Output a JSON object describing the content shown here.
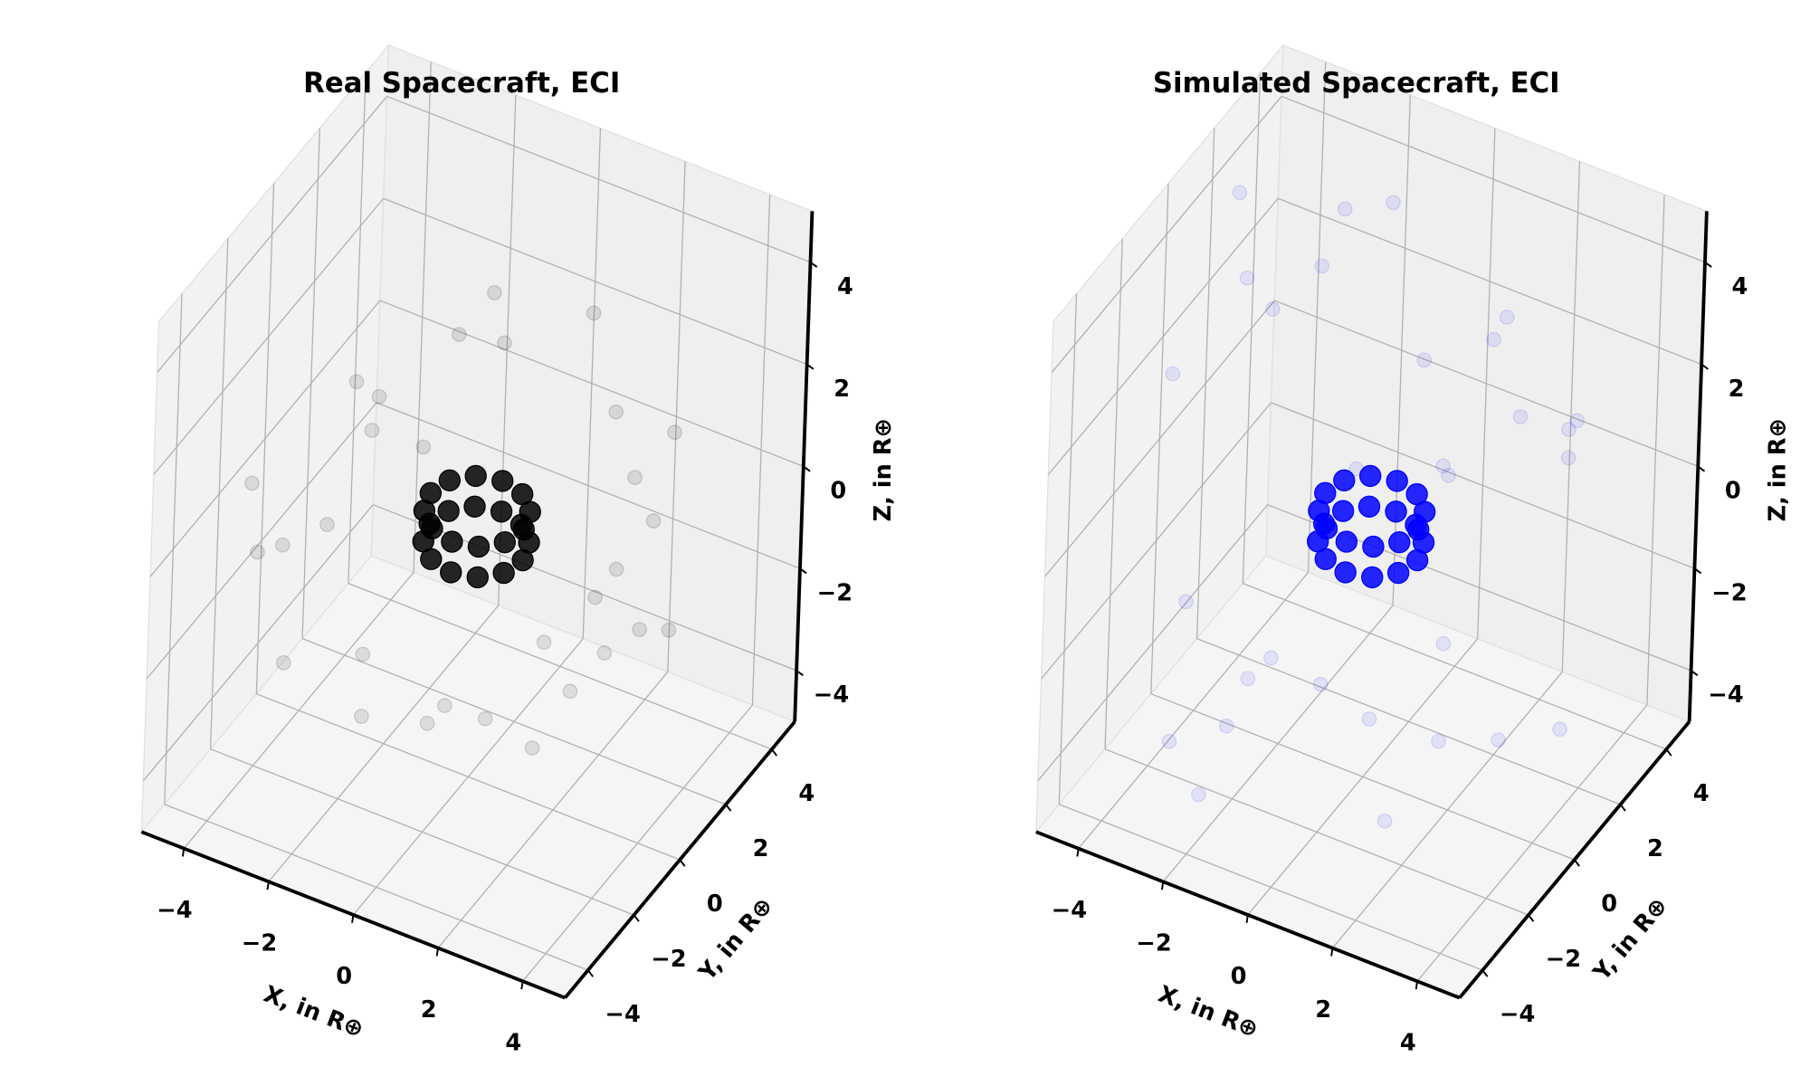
{
  "chart_data": [
    {
      "type": "scatter3d",
      "title": "Real Spacecraft, ECI",
      "xlabel": "X, in R⊕",
      "ylabel": "Y, in R⊕",
      "zlabel": "Z, in R⊕",
      "xlim": [
        -5,
        5
      ],
      "ylim": [
        -5,
        5
      ],
      "zlim": [
        -5,
        5
      ],
      "xticks": [
        {
          "value": -4,
          "label": "−4"
        },
        {
          "value": -2,
          "label": "−2"
        },
        0,
        2,
        4
      ],
      "yticks": [
        {
          "value": -4,
          "label": "−4"
        },
        {
          "value": -2,
          "label": "−2"
        },
        0,
        2,
        4
      ],
      "zticks": [
        {
          "value": -4,
          "label": "−4"
        },
        {
          "value": -2,
          "label": "−2"
        },
        0,
        2,
        4
      ],
      "grid": true,
      "series": [
        {
          "color": "#000000",
          "alpha": 0.85,
          "x": [
            1.1,
            0.95,
            0.55,
            0,
            -0.55,
            -0.95,
            -1.1,
            -0.95,
            -0.55,
            0,
            0.55,
            0.95,
            1.1,
            0.95,
            0.55,
            0,
            -0.55,
            -0.95,
            -1.1,
            -0.95,
            -0.55,
            0,
            0.55,
            0.95
          ],
          "y": [
            0,
            0.55,
            0.95,
            1.1,
            0.95,
            0.55,
            0,
            -0.55,
            -0.95,
            -1.1,
            -0.95,
            -0.55,
            0,
            0.55,
            0.95,
            1.1,
            0.95,
            0.55,
            0,
            -0.55,
            -0.95,
            -1.1,
            -0.95,
            -0.55
          ],
          "z": [
            -0.4,
            -0.4,
            -0.4,
            -0.4,
            -0.4,
            -0.4,
            -0.4,
            -0.4,
            -0.4,
            -0.4,
            -0.4,
            -0.4,
            0.2,
            0.2,
            0.2,
            0.2,
            0.2,
            0.2,
            0.2,
            0.2,
            0.2,
            0.2,
            0.2,
            0.2
          ]
        },
        {
          "color": "#000000",
          "alpha": 0.1,
          "x": [
            3.5,
            -3.8,
            2.2,
            -1.5,
            4.0,
            -4.2,
            1.0,
            -2.8,
            3.0,
            -0.5,
            2.6,
            -3.3,
            0.8,
            -2.0,
            4.3,
            -4.5,
            1.8,
            -1.2,
            3.7,
            -3.0,
            0.3,
            2.9,
            -2.4,
            1.5,
            -4.0,
            3.2,
            -0.9,
            2.0,
            -3.6,
            4.1
          ],
          "y": [
            1.2,
            2.5,
            -3.6,
            3.9,
            -1.8,
            -0.6,
            4.2,
            -3.1,
            3.0,
            -4.0,
            -2.2,
            1.8,
            -3.5,
            2.8,
            0.5,
            -1.5,
            3.6,
            -2.6,
            -0.8,
            3.3,
            4.4,
            1.9,
            -1.0,
            -4.1,
            1.0,
            -3.0,
            2.2,
            0.6,
            -2.9,
            -2.5
          ],
          "z": [
            0.5,
            -0.8,
            -1.2,
            0.9,
            -0.3,
            -1.5,
            0.2,
            -2.0,
            1.1,
            -0.6,
            -2.4,
            0.4,
            -1.8,
            1.5,
            -1.0,
            0.1,
            -0.5,
            -2.8,
            0.7,
            -1.3,
            1.8,
            -2.2,
            2.5,
            -0.9,
            -1.9,
            0.3,
            3.0,
            -3.0,
            -0.2,
            1.2
          ]
        }
      ]
    },
    {
      "type": "scatter3d",
      "title": "Simulated Spacecraft, ECI",
      "xlabel": "X, in R⊕",
      "ylabel": "Y, in R⊕",
      "zlabel": "Z, in R⊕",
      "xlim": [
        -5,
        5
      ],
      "ylim": [
        -5,
        5
      ],
      "zlim": [
        -5,
        5
      ],
      "xticks": [
        {
          "value": -4,
          "label": "−4"
        },
        {
          "value": -2,
          "label": "−2"
        },
        0,
        2,
        4
      ],
      "yticks": [
        {
          "value": -4,
          "label": "−4"
        },
        {
          "value": -2,
          "label": "−2"
        },
        0,
        2,
        4
      ],
      "zticks": [
        {
          "value": -4,
          "label": "−4"
        },
        {
          "value": -2,
          "label": "−2"
        },
        0,
        2,
        4
      ],
      "grid": true,
      "series": [
        {
          "color": "#0000ff",
          "alpha": 0.85,
          "x": [
            1.1,
            0.95,
            0.55,
            0,
            -0.55,
            -0.95,
            -1.1,
            -0.95,
            -0.55,
            0,
            0.55,
            0.95,
            1.1,
            0.95,
            0.55,
            0,
            -0.55,
            -0.95,
            -1.1,
            -0.95,
            -0.55,
            0,
            0.55,
            0.95
          ],
          "y": [
            0,
            0.55,
            0.95,
            1.1,
            0.95,
            0.55,
            0,
            -0.55,
            -0.95,
            -1.1,
            -0.95,
            -0.55,
            0,
            0.55,
            0.95,
            1.1,
            0.95,
            0.55,
            0,
            -0.55,
            -0.95,
            -1.1,
            -0.95,
            -0.55
          ],
          "z": [
            -0.4,
            -0.4,
            -0.4,
            -0.4,
            -0.4,
            -0.4,
            -0.4,
            -0.4,
            -0.4,
            -0.4,
            -0.4,
            -0.4,
            0.2,
            0.2,
            0.2,
            0.2,
            0.2,
            0.2,
            0.2,
            0.2,
            0.2,
            0.2,
            0.2,
            0.2
          ]
        },
        {
          "color": "#0000ff",
          "alpha": 0.08,
          "x": [
            1.2,
            2.5,
            -3.6,
            3.9,
            -1.8,
            -0.6,
            4.2,
            -3.1,
            3.0,
            -4.0,
            -2.2,
            1.8,
            -3.5,
            2.8,
            0.5,
            -1.5,
            3.6,
            -2.6,
            -0.8,
            3.3,
            4.4,
            1.9,
            -1.0,
            -4.1,
            1.0,
            -3.0,
            2.2,
            0.6,
            -2.9,
            -2.5
          ],
          "y": [
            3.5,
            -3.8,
            2.2,
            -1.5,
            4.0,
            -4.2,
            1.0,
            -2.8,
            3.0,
            -0.5,
            2.6,
            -3.3,
            0.8,
            -2.0,
            4.3,
            -4.5,
            1.8,
            -1.2,
            3.7,
            -3.0,
            0.3,
            2.9,
            -2.4,
            1.5,
            -4.0,
            3.2,
            -0.9,
            2.0,
            -3.6,
            4.1
          ],
          "z": [
            2.5,
            -3.0,
            1.8,
            -2.2,
            3.5,
            -1.0,
            2.8,
            -3.8,
            0.6,
            -2.6,
            4.0,
            -1.5,
            3.2,
            -0.4,
            1.4,
            -3.4,
            2.0,
            -4.2,
            0.9,
            3.6,
            -2.8,
            1.1,
            -1.7,
            4.3,
            -0.7,
            2.3,
            -3.1,
            0.2,
            3.9,
            -2.0
          ]
        }
      ]
    }
  ]
}
